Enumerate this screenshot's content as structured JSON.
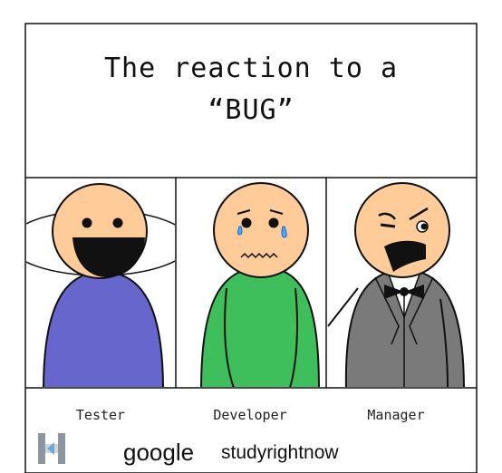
{
  "title": {
    "line1": "The reaction to a",
    "line2": "“BUG”"
  },
  "panels": [
    {
      "label": "Tester",
      "shirt_color": "#6666cc",
      "expression": "laughing"
    },
    {
      "label": "Developer",
      "shirt_color": "#3fbf5c",
      "expression": "crying"
    },
    {
      "label": "Manager",
      "shirt_color": "#7a7a7a",
      "expression": "angry"
    }
  ],
  "colors": {
    "skin": "#ffcc99",
    "outline": "#111111",
    "tear": "#4da6ff"
  },
  "watermark": {
    "word1": "google",
    "word2": "studyrightnow"
  }
}
